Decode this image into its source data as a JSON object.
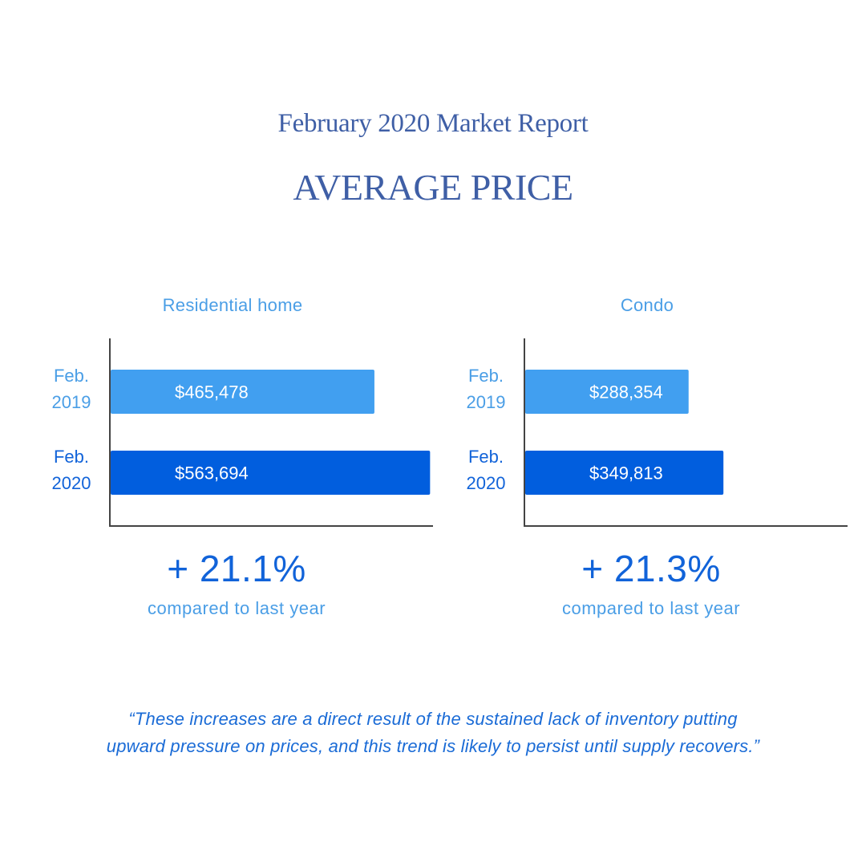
{
  "header": {
    "report_title": "February 2020 Market Report",
    "main_title": "AVERAGE PRICE"
  },
  "colors": {
    "title": "#3f5fa6",
    "label_light": "#4a9ee6",
    "bar_2019": "#419ff0",
    "bar_2020": "#015ede",
    "axis": "#444444"
  },
  "chart_data": [
    {
      "type": "bar",
      "orientation": "horizontal",
      "title": "Residential home",
      "categories": [
        [
          "Feb.",
          "2019"
        ],
        [
          "Feb.",
          "2020"
        ]
      ],
      "values": [
        465478,
        563694
      ],
      "value_labels": [
        "$465,478",
        "$563,694"
      ],
      "xlim": [
        0,
        750000
      ],
      "grid": false,
      "change": "+ 21.1%",
      "change_caption": "compared to last year"
    },
    {
      "type": "bar",
      "orientation": "horizontal",
      "title": "Condo",
      "categories": [
        [
          "Feb.",
          "2019"
        ],
        [
          "Feb.",
          "2020"
        ]
      ],
      "values": [
        288354,
        349813
      ],
      "value_labels": [
        "$288,354",
        "$349,813"
      ],
      "xlim": [
        0,
        750000
      ],
      "grid": false,
      "change": "+ 21.3%",
      "change_caption": "compared to last year"
    }
  ],
  "quote": {
    "line1": "“These increases are a direct result of the sustained lack of inventory putting",
    "line2": "upward pressure on prices, and this trend is likely to persist until supply recovers.”"
  }
}
